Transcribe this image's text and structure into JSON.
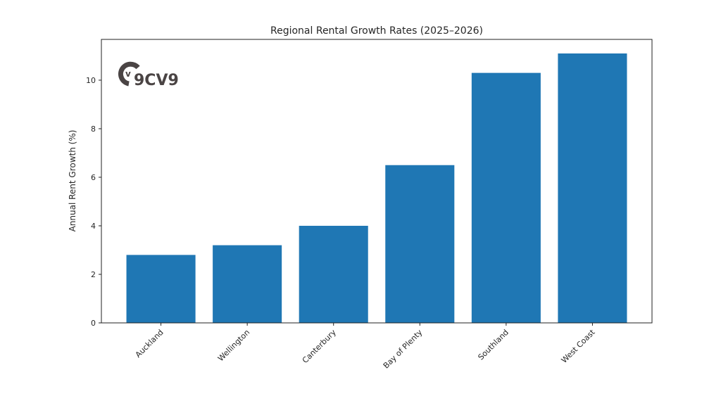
{
  "chart_data": {
    "type": "bar",
    "title": "Regional Rental Growth Rates (2025–2026)",
    "xlabel": "",
    "ylabel": "Annual Rent Growth (%)",
    "categories": [
      "Auckland",
      "Wellington",
      "Canterbury",
      "Bay of Plenty",
      "Southland",
      "West Coast"
    ],
    "values": [
      2.8,
      3.2,
      4.0,
      6.5,
      10.3,
      11.1
    ],
    "ylim": [
      0,
      11.68
    ],
    "yticks": [
      0,
      2,
      4,
      6,
      8,
      10
    ],
    "grid": false,
    "bar_color": "#1f77b4",
    "x_tick_rotation": 45
  },
  "logo": {
    "text": "9CV9",
    "mark": "v",
    "color": "#4a4444"
  }
}
